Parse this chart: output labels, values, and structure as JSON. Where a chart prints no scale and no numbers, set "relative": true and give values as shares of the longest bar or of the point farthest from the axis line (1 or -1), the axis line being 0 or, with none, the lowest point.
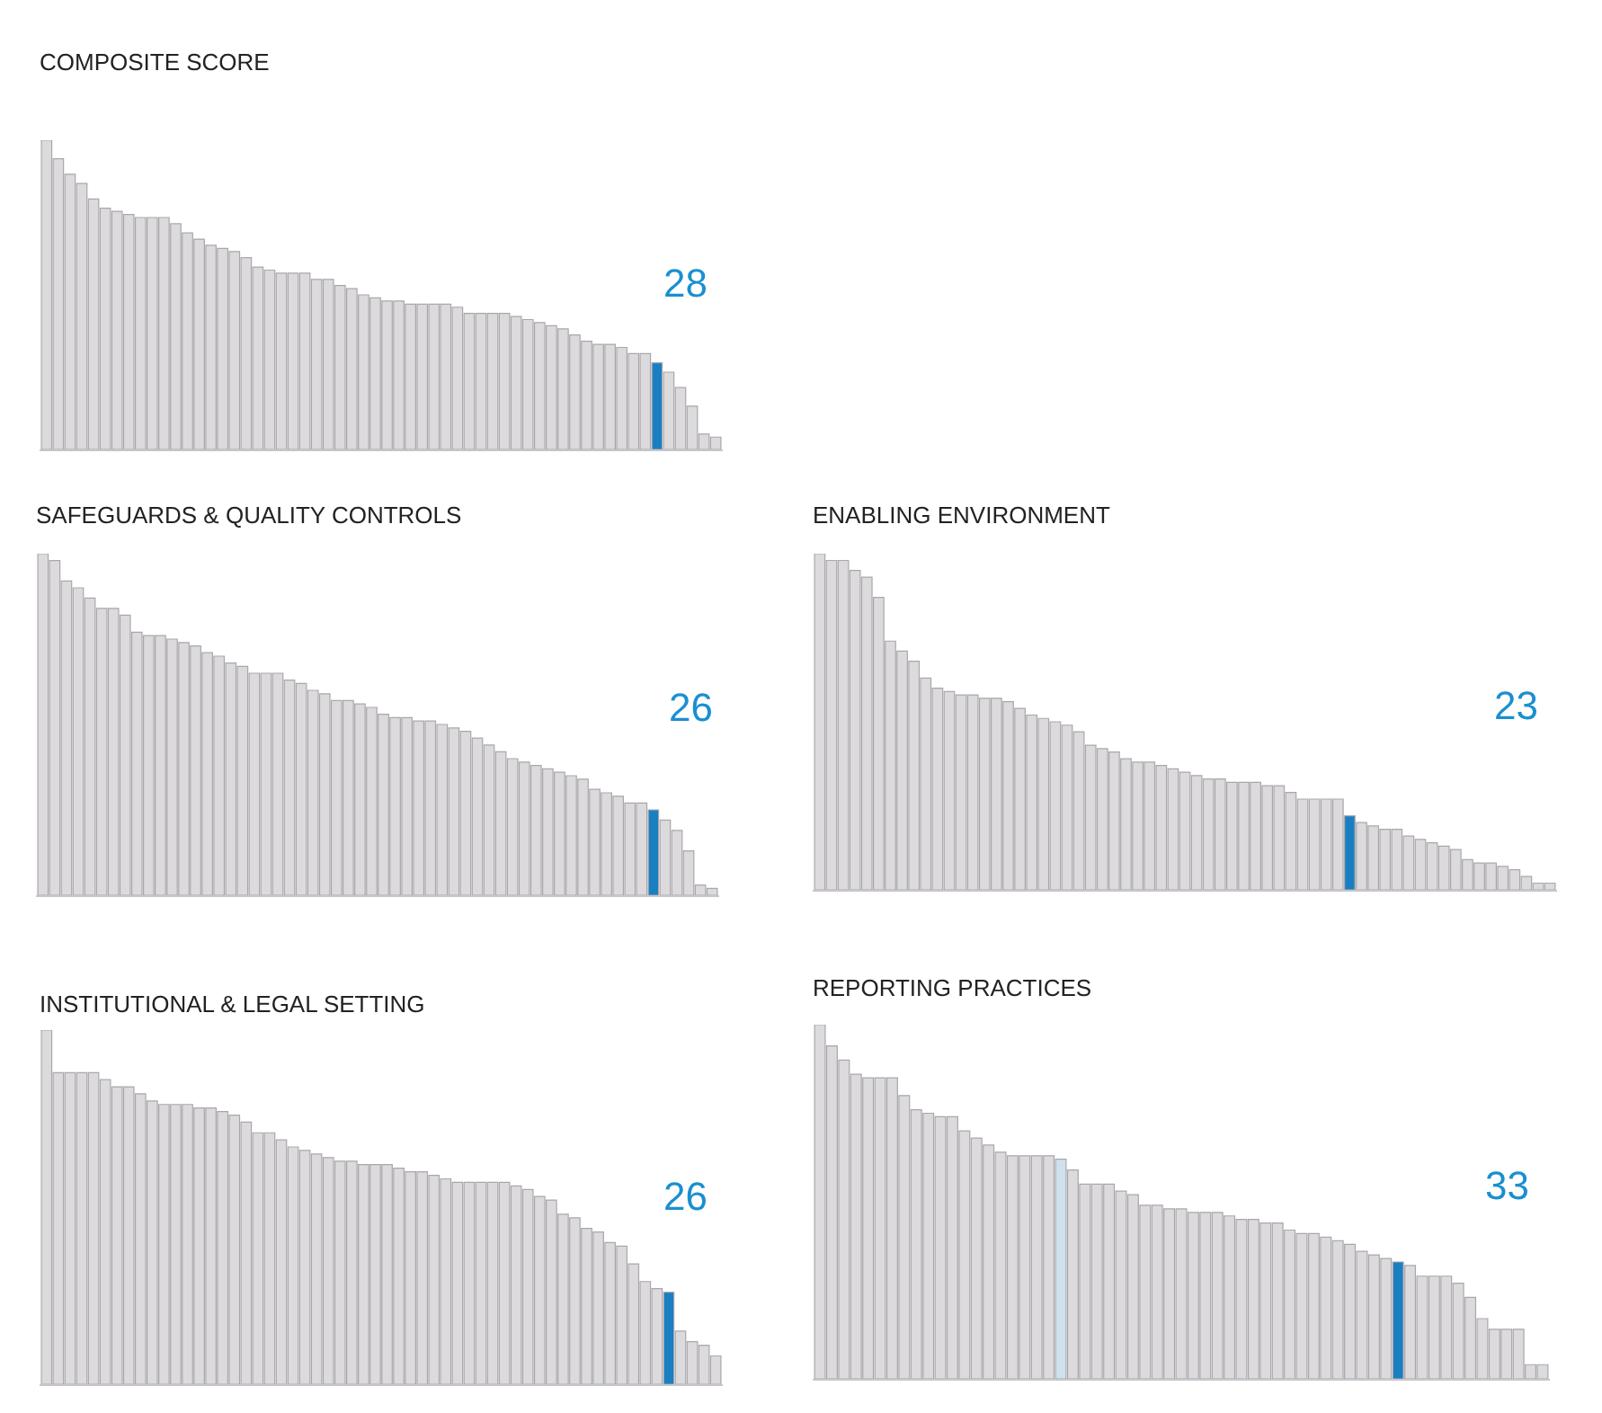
{
  "chart_data": [
    {
      "type": "bar",
      "title": "COMPOSITE SCORE",
      "relative": true,
      "annotations": [
        "28"
      ],
      "categories": [
        null,
        null,
        null,
        null,
        null,
        null,
        null,
        null,
        null,
        null,
        null,
        null,
        null,
        null,
        null,
        null,
        null,
        null,
        null,
        null,
        null,
        null,
        null,
        null,
        null,
        null,
        null,
        null,
        null,
        null,
        null,
        null,
        null,
        null,
        null,
        null,
        null,
        null,
        null,
        null,
        null,
        null,
        null,
        null,
        null,
        null,
        null,
        null,
        null,
        null,
        null,
        null,
        null,
        null,
        null,
        null,
        null,
        null
      ],
      "values": [
        1.0,
        0.94,
        0.89,
        0.86,
        0.81,
        0.78,
        0.77,
        0.76,
        0.75,
        0.75,
        0.75,
        0.73,
        0.7,
        0.68,
        0.66,
        0.65,
        0.64,
        0.62,
        0.59,
        0.58,
        0.57,
        0.57,
        0.57,
        0.55,
        0.55,
        0.53,
        0.52,
        0.5,
        0.49,
        0.48,
        0.48,
        0.47,
        0.47,
        0.47,
        0.47,
        0.46,
        0.44,
        0.44,
        0.44,
        0.44,
        0.43,
        0.42,
        0.41,
        0.4,
        0.39,
        0.37,
        0.35,
        0.34,
        0.34,
        0.33,
        0.31,
        0.31,
        0.28,
        0.25,
        0.2,
        0.14,
        0.05,
        0.04
      ],
      "colors": [
        "#dcdadd",
        "#dcdadd",
        "#dcdadd",
        "#dcdadd",
        "#dcdadd",
        "#dcdadd",
        "#dcdadd",
        "#dcdadd",
        "#dcdadd",
        "#dcdadd",
        "#dcdadd",
        "#dcdadd",
        "#dcdadd",
        "#dcdadd",
        "#dcdadd",
        "#dcdadd",
        "#dcdadd",
        "#dcdadd",
        "#dcdadd",
        "#dcdadd",
        "#dcdadd",
        "#dcdadd",
        "#dcdadd",
        "#dcdadd",
        "#dcdadd",
        "#dcdadd",
        "#dcdadd",
        "#dcdadd",
        "#dcdadd",
        "#dcdadd",
        "#dcdadd",
        "#dcdadd",
        "#dcdadd",
        "#dcdadd",
        "#dcdadd",
        "#dcdadd",
        "#dcdadd",
        "#dcdadd",
        "#dcdadd",
        "#dcdadd",
        "#dcdadd",
        "#dcdadd",
        "#dcdadd",
        "#dcdadd",
        "#dcdadd",
        "#dcdadd",
        "#dcdadd",
        "#dcdadd",
        "#dcdadd",
        "#dcdadd",
        "#dcdadd",
        "#dcdadd",
        "#1a7fc1",
        "#dcdadd",
        "#dcdadd",
        "#dcdadd",
        "#dcdadd",
        "#dcdadd"
      ]
    },
    {
      "type": "bar",
      "title": "SAFEGUARDS & QUALITY CONTROLS",
      "relative": true,
      "annotations": [
        "26"
      ],
      "categories": [
        null,
        null,
        null,
        null,
        null,
        null,
        null,
        null,
        null,
        null,
        null,
        null,
        null,
        null,
        null,
        null,
        null,
        null,
        null,
        null,
        null,
        null,
        null,
        null,
        null,
        null,
        null,
        null,
        null,
        null,
        null,
        null,
        null,
        null,
        null,
        null,
        null,
        null,
        null,
        null,
        null,
        null,
        null,
        null,
        null,
        null,
        null,
        null,
        null,
        null,
        null,
        null,
        null,
        null,
        null,
        null,
        null,
        null
      ],
      "values": [
        1.0,
        0.98,
        0.92,
        0.9,
        0.87,
        0.84,
        0.84,
        0.82,
        0.77,
        0.76,
        0.76,
        0.75,
        0.74,
        0.73,
        0.71,
        0.7,
        0.68,
        0.67,
        0.65,
        0.65,
        0.65,
        0.63,
        0.62,
        0.6,
        0.59,
        0.57,
        0.57,
        0.56,
        0.55,
        0.53,
        0.52,
        0.52,
        0.51,
        0.51,
        0.5,
        0.49,
        0.48,
        0.46,
        0.44,
        0.42,
        0.4,
        0.39,
        0.38,
        0.37,
        0.36,
        0.35,
        0.34,
        0.31,
        0.3,
        0.29,
        0.27,
        0.27,
        0.25,
        0.22,
        0.19,
        0.13,
        0.03,
        0.02
      ],
      "colors": [
        "#dcdadd",
        "#dcdadd",
        "#dcdadd",
        "#dcdadd",
        "#dcdadd",
        "#dcdadd",
        "#dcdadd",
        "#dcdadd",
        "#dcdadd",
        "#dcdadd",
        "#dcdadd",
        "#dcdadd",
        "#dcdadd",
        "#dcdadd",
        "#dcdadd",
        "#dcdadd",
        "#dcdadd",
        "#dcdadd",
        "#dcdadd",
        "#dcdadd",
        "#dcdadd",
        "#dcdadd",
        "#dcdadd",
        "#dcdadd",
        "#dcdadd",
        "#dcdadd",
        "#dcdadd",
        "#dcdadd",
        "#dcdadd",
        "#dcdadd",
        "#dcdadd",
        "#dcdadd",
        "#dcdadd",
        "#dcdadd",
        "#dcdadd",
        "#dcdadd",
        "#dcdadd",
        "#dcdadd",
        "#dcdadd",
        "#dcdadd",
        "#dcdadd",
        "#dcdadd",
        "#dcdadd",
        "#dcdadd",
        "#dcdadd",
        "#dcdadd",
        "#dcdadd",
        "#dcdadd",
        "#dcdadd",
        "#dcdadd",
        "#dcdadd",
        "#dcdadd",
        "#1a7fc1",
        "#dcdadd",
        "#dcdadd",
        "#dcdadd",
        "#dcdadd",
        "#dcdadd"
      ]
    },
    {
      "type": "bar",
      "title": "ENABLING ENVIRONMENT",
      "relative": true,
      "annotations": [
        "23"
      ],
      "categories": [
        null,
        null,
        null,
        null,
        null,
        null,
        null,
        null,
        null,
        null,
        null,
        null,
        null,
        null,
        null,
        null,
        null,
        null,
        null,
        null,
        null,
        null,
        null,
        null,
        null,
        null,
        null,
        null,
        null,
        null,
        null,
        null,
        null,
        null,
        null,
        null,
        null,
        null,
        null,
        null,
        null,
        null,
        null,
        null,
        null,
        null,
        null,
        null,
        null,
        null,
        null,
        null,
        null,
        null,
        null,
        null,
        null,
        null,
        null,
        null,
        null,
        null,
        null
      ],
      "values": [
        1.0,
        0.98,
        0.98,
        0.95,
        0.93,
        0.87,
        0.74,
        0.71,
        0.68,
        0.63,
        0.6,
        0.59,
        0.58,
        0.58,
        0.57,
        0.57,
        0.56,
        0.54,
        0.52,
        0.51,
        0.5,
        0.49,
        0.47,
        0.43,
        0.42,
        0.41,
        0.39,
        0.38,
        0.38,
        0.37,
        0.36,
        0.35,
        0.34,
        0.33,
        0.33,
        0.32,
        0.32,
        0.32,
        0.31,
        0.31,
        0.29,
        0.27,
        0.27,
        0.27,
        0.27,
        0.22,
        0.2,
        0.19,
        0.18,
        0.18,
        0.16,
        0.15,
        0.14,
        0.13,
        0.12,
        0.09,
        0.08,
        0.08,
        0.07,
        0.06,
        0.04,
        0.02,
        0.02
      ],
      "colors": [
        "#dcdadd",
        "#dcdadd",
        "#dcdadd",
        "#dcdadd",
        "#dcdadd",
        "#dcdadd",
        "#dcdadd",
        "#dcdadd",
        "#dcdadd",
        "#dcdadd",
        "#dcdadd",
        "#dcdadd",
        "#dcdadd",
        "#dcdadd",
        "#dcdadd",
        "#dcdadd",
        "#dcdadd",
        "#dcdadd",
        "#dcdadd",
        "#dcdadd",
        "#dcdadd",
        "#dcdadd",
        "#dcdadd",
        "#dcdadd",
        "#dcdadd",
        "#dcdadd",
        "#dcdadd",
        "#dcdadd",
        "#dcdadd",
        "#dcdadd",
        "#dcdadd",
        "#dcdadd",
        "#dcdadd",
        "#dcdadd",
        "#dcdadd",
        "#dcdadd",
        "#dcdadd",
        "#dcdadd",
        "#dcdadd",
        "#dcdadd",
        "#dcdadd",
        "#dcdadd",
        "#dcdadd",
        "#dcdadd",
        "#dcdadd",
        "#1a7fc1",
        "#dcdadd",
        "#dcdadd",
        "#dcdadd",
        "#dcdadd",
        "#dcdadd",
        "#dcdadd",
        "#dcdadd",
        "#dcdadd",
        "#dcdadd",
        "#dcdadd",
        "#dcdadd",
        "#dcdadd",
        "#dcdadd",
        "#dcdadd",
        "#dcdadd",
        "#dcdadd",
        "#dcdadd"
      ]
    },
    {
      "type": "bar",
      "title": "INSTITUTIONAL & LEGAL SETTING",
      "relative": true,
      "annotations": [
        "26"
      ],
      "categories": [
        null,
        null,
        null,
        null,
        null,
        null,
        null,
        null,
        null,
        null,
        null,
        null,
        null,
        null,
        null,
        null,
        null,
        null,
        null,
        null,
        null,
        null,
        null,
        null,
        null,
        null,
        null,
        null,
        null,
        null,
        null,
        null,
        null,
        null,
        null,
        null,
        null,
        null,
        null,
        null,
        null,
        null,
        null,
        null,
        null,
        null,
        null,
        null,
        null,
        null,
        null,
        null,
        null,
        null,
        null,
        null,
        null,
        null
      ],
      "values": [
        1.0,
        0.88,
        0.88,
        0.88,
        0.88,
        0.86,
        0.84,
        0.84,
        0.82,
        0.8,
        0.79,
        0.79,
        0.79,
        0.78,
        0.78,
        0.77,
        0.76,
        0.74,
        0.71,
        0.71,
        0.69,
        0.67,
        0.66,
        0.65,
        0.64,
        0.63,
        0.63,
        0.62,
        0.62,
        0.62,
        0.61,
        0.6,
        0.6,
        0.59,
        0.58,
        0.57,
        0.57,
        0.57,
        0.57,
        0.57,
        0.56,
        0.55,
        0.53,
        0.52,
        0.48,
        0.47,
        0.44,
        0.43,
        0.4,
        0.39,
        0.34,
        0.29,
        0.27,
        0.26,
        0.15,
        0.12,
        0.11,
        0.08
      ],
      "colors": [
        "#dcdadd",
        "#dcdadd",
        "#dcdadd",
        "#dcdadd",
        "#dcdadd",
        "#dcdadd",
        "#dcdadd",
        "#dcdadd",
        "#dcdadd",
        "#dcdadd",
        "#dcdadd",
        "#dcdadd",
        "#dcdadd",
        "#dcdadd",
        "#dcdadd",
        "#dcdadd",
        "#dcdadd",
        "#dcdadd",
        "#dcdadd",
        "#dcdadd",
        "#dcdadd",
        "#dcdadd",
        "#dcdadd",
        "#dcdadd",
        "#dcdadd",
        "#dcdadd",
        "#dcdadd",
        "#dcdadd",
        "#dcdadd",
        "#dcdadd",
        "#dcdadd",
        "#dcdadd",
        "#dcdadd",
        "#dcdadd",
        "#dcdadd",
        "#dcdadd",
        "#dcdadd",
        "#dcdadd",
        "#dcdadd",
        "#dcdadd",
        "#dcdadd",
        "#dcdadd",
        "#dcdadd",
        "#dcdadd",
        "#dcdadd",
        "#dcdadd",
        "#dcdadd",
        "#dcdadd",
        "#dcdadd",
        "#dcdadd",
        "#dcdadd",
        "#dcdadd",
        "#dcdadd",
        "#1a7fc1",
        "#dcdadd",
        "#dcdadd",
        "#dcdadd",
        "#dcdadd"
      ]
    },
    {
      "type": "bar",
      "title": "REPORTING PRACTICES",
      "relative": true,
      "annotations": [
        "33"
      ],
      "categories": [
        null,
        null,
        null,
        null,
        null,
        null,
        null,
        null,
        null,
        null,
        null,
        null,
        null,
        null,
        null,
        null,
        null,
        null,
        null,
        null,
        null,
        null,
        null,
        null,
        null,
        null,
        null,
        null,
        null,
        null,
        null,
        null,
        null,
        null,
        null,
        null,
        null,
        null,
        null,
        null,
        null,
        null,
        null,
        null,
        null,
        null,
        null,
        null,
        null,
        null,
        null,
        null,
        null,
        null,
        null,
        null,
        null,
        null,
        null,
        null,
        null
      ],
      "values": [
        1.0,
        0.94,
        0.9,
        0.86,
        0.85,
        0.85,
        0.85,
        0.8,
        0.76,
        0.75,
        0.74,
        0.74,
        0.7,
        0.68,
        0.66,
        0.64,
        0.63,
        0.63,
        0.63,
        0.63,
        0.62,
        0.59,
        0.55,
        0.55,
        0.55,
        0.53,
        0.52,
        0.49,
        0.49,
        0.48,
        0.48,
        0.47,
        0.47,
        0.47,
        0.46,
        0.45,
        0.45,
        0.44,
        0.44,
        0.42,
        0.41,
        0.41,
        0.4,
        0.39,
        0.38,
        0.36,
        0.35,
        0.34,
        0.33,
        0.32,
        0.29,
        0.29,
        0.29,
        0.27,
        0.23,
        0.17,
        0.14,
        0.14,
        0.14,
        0.04,
        0.04
      ],
      "colors": [
        "#dcdadd",
        "#dcdadd",
        "#dcdadd",
        "#dcdadd",
        "#dcdadd",
        "#dcdadd",
        "#dcdadd",
        "#dcdadd",
        "#dcdadd",
        "#dcdadd",
        "#dcdadd",
        "#dcdadd",
        "#dcdadd",
        "#dcdadd",
        "#dcdadd",
        "#dcdadd",
        "#dcdadd",
        "#dcdadd",
        "#dcdadd",
        "#dcdadd",
        "#cfe0ee",
        "#dcdadd",
        "#dcdadd",
        "#dcdadd",
        "#dcdadd",
        "#dcdadd",
        "#dcdadd",
        "#dcdadd",
        "#dcdadd",
        "#dcdadd",
        "#dcdadd",
        "#dcdadd",
        "#dcdadd",
        "#dcdadd",
        "#dcdadd",
        "#dcdadd",
        "#dcdadd",
        "#dcdadd",
        "#dcdadd",
        "#dcdadd",
        "#dcdadd",
        "#dcdadd",
        "#dcdadd",
        "#dcdadd",
        "#dcdadd",
        "#dcdadd",
        "#dcdadd",
        "#dcdadd",
        "#1a7fc1",
        "#dcdadd",
        "#dcdadd",
        "#dcdadd",
        "#dcdadd",
        "#dcdadd",
        "#dcdadd",
        "#dcdadd",
        "#dcdadd",
        "#dcdadd",
        "#dcdadd",
        "#dcdadd",
        "#dcdadd"
      ]
    }
  ]
}
